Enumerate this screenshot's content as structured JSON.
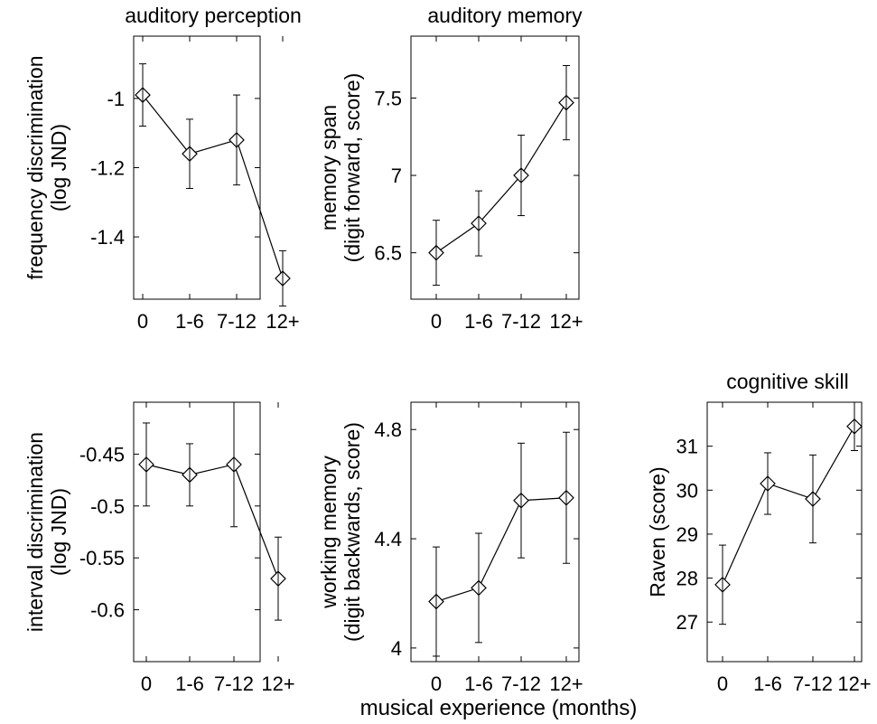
{
  "figure": {
    "xlabel": "musical experience (months)"
  },
  "chart_data": [
    {
      "type": "line",
      "title": "auditory perception",
      "ylabel": [
        "frequency discrimination",
        "(log JND)"
      ],
      "categories": [
        "0",
        "1-6",
        "7-12",
        "12+"
      ],
      "values": [
        -0.99,
        -1.16,
        -1.12,
        -1.52
      ],
      "err_low": [
        -1.08,
        -1.26,
        -1.25,
        -1.6
      ],
      "err_high": [
        -0.9,
        -1.06,
        -0.99,
        -1.44
      ],
      "ylim": [
        -1.58,
        -0.82
      ],
      "yticks": [
        -1.4,
        -1.2,
        -1
      ],
      "ytick_labels": [
        "-1.4",
        "-1.2",
        "-1"
      ],
      "grid": false
    },
    {
      "type": "line",
      "title": "auditory memory",
      "ylabel": [
        "memory span",
        "(digit forward, score)"
      ],
      "categories": [
        "0",
        "1-6",
        "7-12",
        "12+"
      ],
      "values": [
        6.5,
        6.69,
        7.0,
        7.47
      ],
      "err_low": [
        6.29,
        6.48,
        6.74,
        7.23
      ],
      "err_high": [
        6.71,
        6.9,
        7.26,
        7.71
      ],
      "ylim": [
        6.2,
        7.9
      ],
      "yticks": [
        6.5,
        7,
        7.5
      ],
      "ytick_labels": [
        "6.5",
        "7",
        "7.5"
      ],
      "grid": false
    },
    {
      "type": "line",
      "title": "",
      "ylabel": [
        "interval discrimination",
        "(log JND)"
      ],
      "categories": [
        "0",
        "1-6",
        "7-12",
        "12+"
      ],
      "values": [
        -0.46,
        -0.47,
        -0.46,
        -0.57
      ],
      "err_low": [
        -0.5,
        -0.5,
        -0.52,
        -0.61
      ],
      "err_high": [
        -0.42,
        -0.44,
        -0.4,
        -0.53
      ],
      "ylim": [
        -0.65,
        -0.4
      ],
      "yticks": [
        -0.6,
        -0.55,
        -0.5,
        -0.45
      ],
      "ytick_labels": [
        "-0.6",
        "-0.55",
        "-0.5",
        "-0.45"
      ],
      "grid": false
    },
    {
      "type": "line",
      "title": "",
      "ylabel": [
        "working memory",
        "(digit backwards, score)"
      ],
      "categories": [
        "0",
        "1-6",
        "7-12",
        "12+"
      ],
      "values": [
        4.17,
        4.22,
        4.54,
        4.55
      ],
      "err_low": [
        3.97,
        4.02,
        4.33,
        4.31
      ],
      "err_high": [
        4.37,
        4.42,
        4.75,
        4.79
      ],
      "ylim": [
        3.95,
        4.9
      ],
      "yticks": [
        4,
        4.4,
        4.8
      ],
      "ytick_labels": [
        "4",
        "4.4",
        "4.8"
      ],
      "grid": false
    },
    {
      "type": "line",
      "title": "cognitive skill",
      "ylabel": [
        "Raven (score)"
      ],
      "categories": [
        "0",
        "1-6",
        "7-12",
        "12+"
      ],
      "values": [
        27.85,
        30.15,
        29.8,
        31.45
      ],
      "err_low": [
        26.95,
        29.45,
        28.8,
        30.9
      ],
      "err_high": [
        28.75,
        30.85,
        30.8,
        32.0
      ],
      "ylim": [
        26.1,
        32.0
      ],
      "yticks": [
        27,
        28,
        29,
        30,
        31
      ],
      "ytick_labels": [
        "27",
        "28",
        "29",
        "30",
        "31"
      ],
      "grid": false
    }
  ]
}
